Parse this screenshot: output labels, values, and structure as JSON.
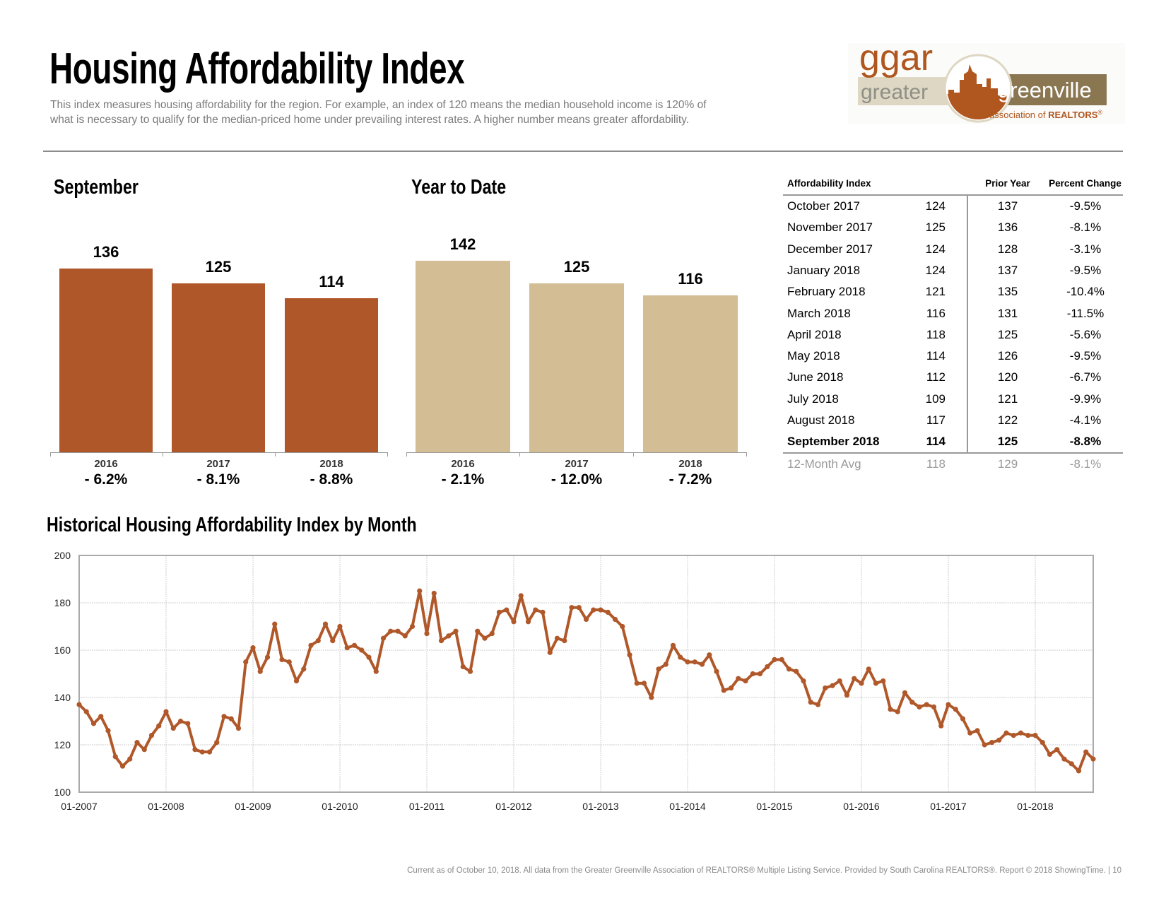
{
  "header": {
    "title": "Housing Affordability Index",
    "description_line1": "This index measures housing affordability for the region. For example, an index of 120 means the median household income is 120% of",
    "description_line2": "what is necessary to qualify for the median-priced home under prevailing interest rates. A higher number means greater affordability."
  },
  "logo": {
    "mark": "ggar",
    "word1": "greater",
    "word2": "greenville",
    "tagline_prefix": "association of ",
    "tagline_bold": "REALTORS",
    "tagline_reg": "®"
  },
  "colors": {
    "september_bar": "#B0572A",
    "ytd_bar": "#D2BD94",
    "line": "#B0582A",
    "logo_rust": "#B0561F",
    "logo_olive": "#8A7752",
    "logo_beige": "#DDD7C3"
  },
  "chart_data": [
    {
      "type": "bar",
      "title": "September",
      "categories": [
        "2016",
        "2017",
        "2018"
      ],
      "values": [
        136,
        125,
        114
      ],
      "changes": [
        "- 6.2%",
        "- 8.1%",
        "- 8.8%"
      ],
      "ylim": [
        0,
        150
      ]
    },
    {
      "type": "bar",
      "title": "Year to Date",
      "categories": [
        "2016",
        "2017",
        "2018"
      ],
      "values": [
        142,
        125,
        116
      ],
      "changes": [
        "- 2.1%",
        "- 12.0%",
        "- 7.2%"
      ],
      "ylim": [
        0,
        150
      ]
    },
    {
      "type": "line",
      "title": "Historical Housing Affordability Index by Month",
      "ylim": [
        100,
        200
      ],
      "yticks": [
        "100",
        "120",
        "140",
        "160",
        "180",
        "200"
      ],
      "xtick_labels": [
        "01-2007",
        "01-2008",
        "01-2009",
        "01-2010",
        "01-2011",
        "01-2012",
        "01-2013",
        "01-2014",
        "01-2015",
        "01-2016",
        "01-2017",
        "01-2018"
      ],
      "x_start": "01-2007",
      "x_end": "09-2018",
      "grid": true,
      "values": [
        137,
        134,
        129,
        132,
        126,
        115,
        111,
        114,
        121,
        118,
        124,
        128,
        134,
        127,
        130,
        129,
        118,
        117,
        117,
        121,
        132,
        131,
        127,
        155,
        161,
        151,
        157,
        171,
        156,
        155,
        147,
        152,
        162,
        164,
        171,
        164,
        170,
        161,
        162,
        160,
        157,
        151,
        165,
        168,
        168,
        166,
        170,
        185,
        167,
        184,
        164,
        166,
        168,
        153,
        151,
        168,
        165,
        167,
        176,
        177,
        172,
        183,
        172,
        177,
        176,
        159,
        165,
        164,
        178,
        178,
        173,
        177,
        177,
        176,
        173,
        170,
        158,
        146,
        146,
        140,
        152,
        154,
        162,
        157,
        155,
        155,
        154,
        158,
        151,
        143,
        144,
        148,
        147,
        150,
        150,
        153,
        156,
        156,
        152,
        151,
        147,
        138,
        137,
        144,
        145,
        147,
        141,
        148,
        146,
        152,
        146,
        147,
        135,
        134,
        142,
        138,
        136,
        137,
        136,
        128,
        137,
        135,
        131,
        125,
        126,
        120,
        121,
        122,
        125,
        124,
        125,
        124,
        124,
        121,
        116,
        118,
        114,
        112,
        109,
        117,
        114
      ]
    }
  ],
  "table": {
    "headers": [
      "Affordability Index",
      "",
      "Prior Year",
      "Percent Change"
    ],
    "rows": [
      {
        "month": "October 2017",
        "value": "124",
        "prior": "137",
        "change": "-9.5%"
      },
      {
        "month": "November 2017",
        "value": "125",
        "prior": "136",
        "change": "-8.1%"
      },
      {
        "month": "December 2017",
        "value": "124",
        "prior": "128",
        "change": "-3.1%"
      },
      {
        "month": "January 2018",
        "value": "124",
        "prior": "137",
        "change": "-9.5%"
      },
      {
        "month": "February 2018",
        "value": "121",
        "prior": "135",
        "change": "-10.4%"
      },
      {
        "month": "March 2018",
        "value": "116",
        "prior": "131",
        "change": "-11.5%"
      },
      {
        "month": "April 2018",
        "value": "118",
        "prior": "125",
        "change": "-5.6%"
      },
      {
        "month": "May 2018",
        "value": "114",
        "prior": "126",
        "change": "-9.5%"
      },
      {
        "month": "June 2018",
        "value": "112",
        "prior": "120",
        "change": "-6.7%"
      },
      {
        "month": "July 2018",
        "value": "109",
        "prior": "121",
        "change": "-9.9%"
      },
      {
        "month": "August 2018",
        "value": "117",
        "prior": "122",
        "change": "-4.1%"
      },
      {
        "month": "September 2018",
        "value": "114",
        "prior": "125",
        "change": "-8.8%"
      }
    ],
    "average": {
      "month": "12-Month Avg",
      "value": "118",
      "prior": "129",
      "change": "-8.1%"
    }
  },
  "footer": "Current as of October 10, 2018. All data from the Greater Greenville Association of REALTORS® Multiple Listing Service. Provided by South Carolina REALTORS®. Report © 2018 ShowingTime.  |  10"
}
